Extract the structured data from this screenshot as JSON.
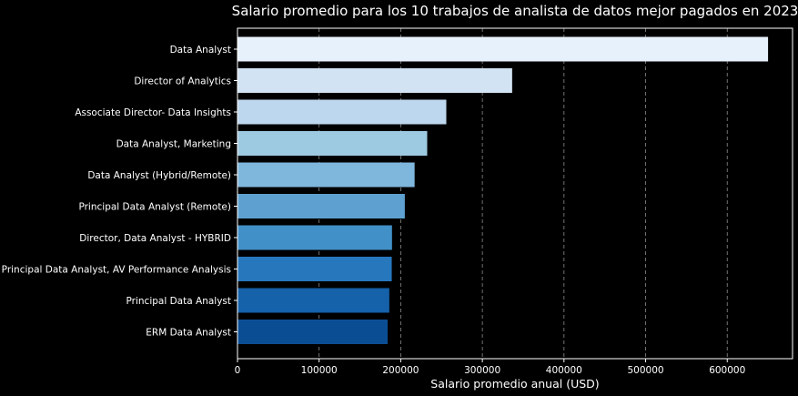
{
  "chart_data": {
    "type": "bar",
    "orientation": "horizontal",
    "title": "Salario promedio para los 10 trabajos de analista de datos mejor pagados en 2023",
    "xlabel": "Salario promedio anual (USD)",
    "ylabel": "",
    "xlim": [
      0,
      680000
    ],
    "xticks": [
      0,
      100000,
      200000,
      300000,
      400000,
      500000,
      600000
    ],
    "grid": "x",
    "categories": [
      "Data Analyst",
      "Director of Analytics",
      "Associate Director- Data Insights",
      "Data Analyst, Marketing",
      "Data Analyst (Hybrid/Remote)",
      "Principal Data Analyst (Remote)",
      "Director, Data Analyst - HYBRID",
      "Principal Data Analyst, AV Performance Analysis",
      "Principal Data Analyst",
      "ERM Data Analyst"
    ],
    "values": [
      650000,
      336500,
      255830,
      232423,
      217000,
      205000,
      189309,
      189000,
      186000,
      184000
    ],
    "bar_colors": [
      "#e7f1fb",
      "#d2e3f3",
      "#bdd7ee",
      "#9ecae1",
      "#7fb6dc",
      "#5ea1d0",
      "#4290c8",
      "#2777bd",
      "#1561aa",
      "#0b4d93"
    ],
    "colors": {
      "background": "#000000",
      "text": "#ffffff",
      "grid": "#bdbdbd"
    }
  }
}
